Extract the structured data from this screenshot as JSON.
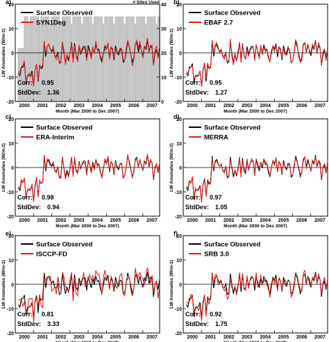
{
  "figure": {
    "x_axis_label": "Month (Mar 2000 to Dec 2007)",
    "y_axis_label": "LW Anomalies (W/m-2)",
    "right_axis_label": "# Sites Used"
  },
  "chart_data": [
    {
      "type": "line",
      "panel_label": "a)",
      "x_ticks": [
        "2000",
        "2001",
        "2002",
        "2003",
        "2004",
        "2005",
        "2006",
        "2007"
      ],
      "xlim": [
        2000.0,
        2007.92
      ],
      "ylim": [
        -20,
        20
      ],
      "y_ticks": [
        -20,
        -10,
        0,
        10,
        20
      ],
      "y2lim": [
        0,
        40
      ],
      "y2_ticks": [
        0,
        10,
        20,
        30,
        40
      ],
      "series": [
        {
          "name": "Surface Observed",
          "color": "#000000",
          "role": "surface"
        },
        {
          "name": "SYN1Deg",
          "color": "#e02020",
          "role": "product"
        }
      ],
      "sites_series": {
        "color": "#bdbdbd",
        "typical_value": 35,
        "early_value": 22
      },
      "start_year": 2000.17,
      "stats": {
        "corr_label": "Corr:",
        "corr": "0.95",
        "std_label": "StdDev:",
        "std": "1.36"
      }
    },
    {
      "type": "line",
      "panel_label": "b)",
      "x_ticks": [
        "2000",
        "2001",
        "2002",
        "2003",
        "2004",
        "2005",
        "2006",
        "2007"
      ],
      "xlim": [
        2000.0,
        2007.92
      ],
      "ylim": [
        -20,
        20
      ],
      "y_ticks": [
        -20,
        -10,
        0,
        10,
        20
      ],
      "series": [
        {
          "name": "Surface Observed",
          "color": "#000000",
          "role": "surface"
        },
        {
          "name": "EBAF 2.7",
          "color": "#e02020",
          "role": "product"
        }
      ],
      "start_year": 2000.17,
      "stats": {
        "corr_label": "Corr:",
        "corr": "0.95",
        "std_label": "StdDev:",
        "std": "1.27"
      }
    },
    {
      "type": "line",
      "panel_label": "c)",
      "x_ticks": [
        "2000",
        "2001",
        "2002",
        "2003",
        "2004",
        "2005",
        "2006",
        "2007"
      ],
      "xlim": [
        2000.0,
        2007.92
      ],
      "ylim": [
        -20,
        20
      ],
      "y_ticks": [
        -20,
        -10,
        0,
        10,
        20
      ],
      "series": [
        {
          "name": "Surface Observed",
          "color": "#000000",
          "role": "surface"
        },
        {
          "name": "ERA-Interim",
          "color": "#e02020",
          "role": "product"
        }
      ],
      "start_year": 2000.17,
      "stats": {
        "corr_label": "Corr:",
        "corr": "0.98",
        "std_label": "StdDev:",
        "std": "0.94"
      }
    },
    {
      "type": "line",
      "panel_label": "d)",
      "x_ticks": [
        "2000",
        "2001",
        "2002",
        "2003",
        "2004",
        "2005",
        "2006",
        "2007"
      ],
      "xlim": [
        2000.0,
        2007.92
      ],
      "ylim": [
        -20,
        20
      ],
      "y_ticks": [
        -20,
        -10,
        0,
        10,
        20
      ],
      "series": [
        {
          "name": "Surface Observed",
          "color": "#000000",
          "role": "surface"
        },
        {
          "name": "MERRA",
          "color": "#e02020",
          "role": "product"
        }
      ],
      "start_year": 2000.17,
      "stats": {
        "corr_label": "Corr:",
        "corr": "0.97",
        "std_label": "StdDev:",
        "std": "1.05"
      }
    },
    {
      "type": "line",
      "panel_label": "e)",
      "x_ticks": [
        "2000",
        "2001",
        "2002",
        "2003",
        "2004",
        "2005",
        "2006",
        "2007"
      ],
      "xlim": [
        2000.0,
        2007.92
      ],
      "ylim": [
        -20,
        20
      ],
      "y_ticks": [
        -20,
        -10,
        0,
        10,
        20
      ],
      "series": [
        {
          "name": "Surface Observed",
          "color": "#000000",
          "role": "surface"
        },
        {
          "name": "ISCCP-FD",
          "color": "#e02020",
          "role": "product"
        }
      ],
      "start_year": 2000.17,
      "stats": {
        "corr_label": "Corr:",
        "corr": "0.81",
        "std_label": "StdDev:",
        "std": "3.33"
      }
    },
    {
      "type": "line",
      "panel_label": "f)",
      "x_ticks": [
        "2000",
        "2001",
        "2002",
        "2003",
        "2004",
        "2005",
        "2006",
        "2007"
      ],
      "xlim": [
        2000.0,
        2007.92
      ],
      "ylim": [
        -20,
        20
      ],
      "y_ticks": [
        -20,
        -10,
        0,
        10,
        20
      ],
      "series": [
        {
          "name": "Surface Observed",
          "color": "#000000",
          "role": "surface"
        },
        {
          "name": "SRB 3.0",
          "color": "#e02020",
          "role": "product"
        }
      ],
      "start_year": 2000.17,
      "stats": {
        "corr_label": "Corr:",
        "corr": "0.92",
        "std_label": "StdDev:",
        "std": "1.75"
      }
    }
  ]
}
